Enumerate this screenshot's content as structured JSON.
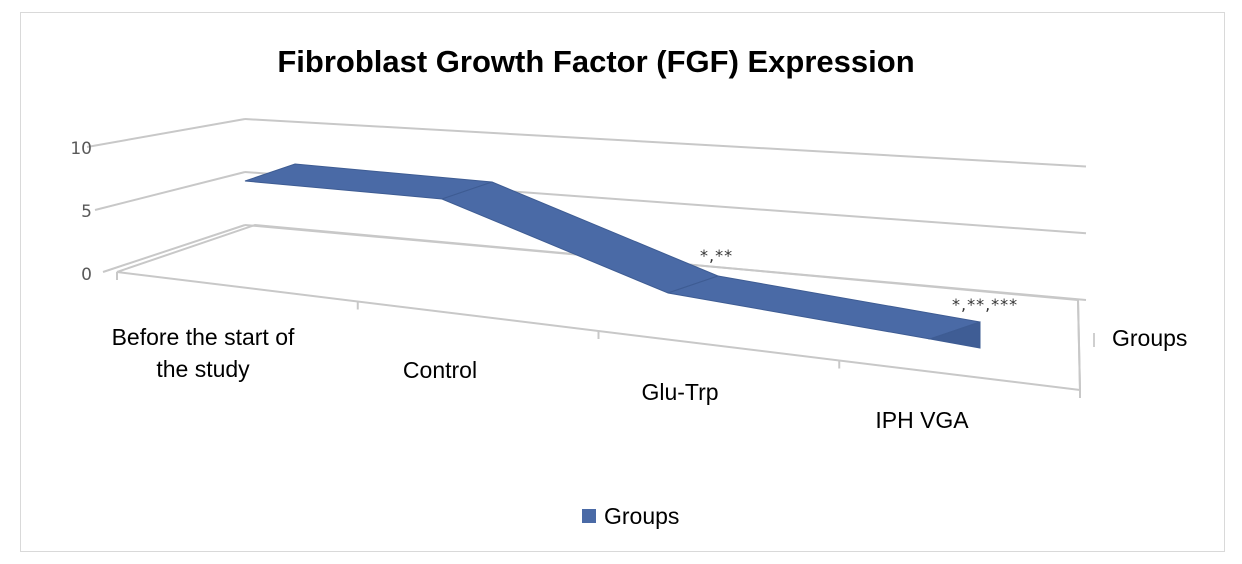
{
  "chart_data": {
    "type": "area",
    "style": "3d-ribbon",
    "title": "Fibroblast Growth Factor (FGF) Expression",
    "xlabel": "",
    "ylabel": "",
    "ylim": [
      0,
      10
    ],
    "yticks": [
      0,
      5,
      10
    ],
    "categories": [
      "Before the start of the study",
      "Control",
      "Glu-Trp",
      "IPH VGA"
    ],
    "series": [
      {
        "name": "Groups",
        "values": [
          8.6,
          7.8,
          2.6,
          0.2
        ],
        "color": "#4a6aa6"
      }
    ],
    "annotations": [
      "",
      "",
      "*,**",
      "*,**,***"
    ],
    "depth_axis_label": "Groups",
    "grid": true,
    "legend": "bottom"
  }
}
